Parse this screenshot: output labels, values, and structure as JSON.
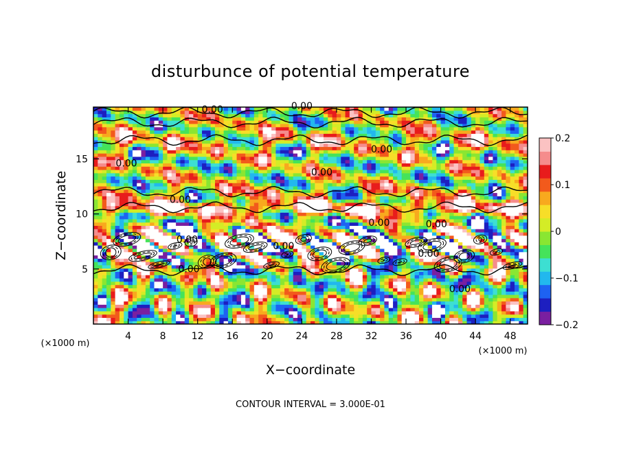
{
  "chart_data": {
    "type": "heatmap",
    "title": "disturbunce of potential temperature",
    "xlabel": "X−coordinate",
    "ylabel": "Z−coordinate",
    "x_unit": "(×1000 m)",
    "z_unit": "(×1000 m)",
    "xlim": [
      0,
      50
    ],
    "ylim": [
      0,
      19.7
    ],
    "x_ticks": [
      4,
      8,
      12,
      16,
      20,
      24,
      28,
      32,
      36,
      40,
      44,
      48
    ],
    "x_tick_labels": [
      "4",
      "8",
      "12",
      "16",
      "20",
      "24",
      "28",
      "32",
      "36",
      "40",
      "44",
      "48"
    ],
    "y_ticks": [
      5,
      10,
      15
    ],
    "y_tick_labels": [
      "5",
      "10",
      "15"
    ],
    "colorbar": {
      "range": [
        -0.2,
        0.2
      ],
      "ticks": [
        0.2,
        0.1,
        0,
        -0.1,
        -0.2
      ],
      "tick_labels": [
        "0.2",
        "0.1",
        "0",
        "−0.1",
        "−0.2"
      ],
      "colors": [
        "#7a1fa0",
        "#1d1fc0",
        "#1e62f2",
        "#22b8ee",
        "#3ddfd2",
        "#45e35a",
        "#8ae632",
        "#d4ec26",
        "#f7de28",
        "#f8a91e",
        "#f25a1c",
        "#e81c1c",
        "#f58c8c",
        "#fbc2c2"
      ]
    },
    "contour_interval_label": "CONTOUR INTERVAL =  3.000E-01",
    "contour_labels": [
      {
        "text": "0.00",
        "x": 13.7,
        "z": 19.2
      },
      {
        "text": "0.00",
        "x": 24.0,
        "z": 19.5
      },
      {
        "text": "0.00",
        "x": 3.8,
        "z": 14.3
      },
      {
        "text": "0.00",
        "x": 33.2,
        "z": 15.6
      },
      {
        "text": "0.00",
        "x": 26.3,
        "z": 13.5
      },
      {
        "text": "0.00",
        "x": 10.0,
        "z": 11.0
      },
      {
        "text": "0.00",
        "x": 32.9,
        "z": 8.9
      },
      {
        "text": "0.00",
        "x": 39.5,
        "z": 8.8
      },
      {
        "text": "0.00",
        "x": 10.8,
        "z": 7.4
      },
      {
        "text": "0.00",
        "x": 21.9,
        "z": 6.8
      },
      {
        "text": "0.00",
        "x": 38.6,
        "z": 6.1
      },
      {
        "text": "0.00",
        "x": 11.0,
        "z": 4.7
      },
      {
        "text": "0.00",
        "x": 42.2,
        "z": 2.9
      }
    ]
  }
}
